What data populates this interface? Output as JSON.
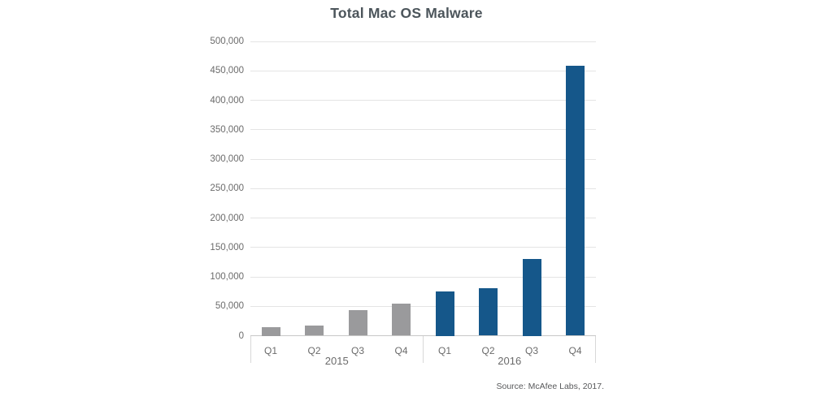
{
  "chart_data": {
    "type": "bar",
    "title": "Total Mac OS Malware",
    "source": "Source: McAfee Labs, 2017.",
    "categories": [
      "Q1",
      "Q2",
      "Q3",
      "Q4"
    ],
    "groups": [
      {
        "label": "2015",
        "color": "#9A9A9C",
        "values": [
          15000,
          17000,
          44000,
          54000
        ]
      },
      {
        "label": "2016",
        "color": "#15578A",
        "values": [
          75000,
          81000,
          130000,
          459000
        ]
      }
    ],
    "ylim": [
      0,
      500000
    ],
    "ytick_step": 50000,
    "ytick_labels": [
      "0",
      "50,000",
      "100,000",
      "150,000",
      "200,000",
      "250,000",
      "300,000",
      "350,000",
      "400,000",
      "450,000",
      "500,000"
    ],
    "grid": true,
    "legend_position": "none"
  },
  "colors": {
    "bar_2015": "#9A9A9C",
    "bar_2016": "#15578A",
    "gridline": "#E4E4E4",
    "axis_line": "#C7C7C7",
    "separator": "#D8D8D8",
    "title_text": "#4C555B",
    "tick_text": "#6B6B6B",
    "source_text": "#58595B"
  }
}
